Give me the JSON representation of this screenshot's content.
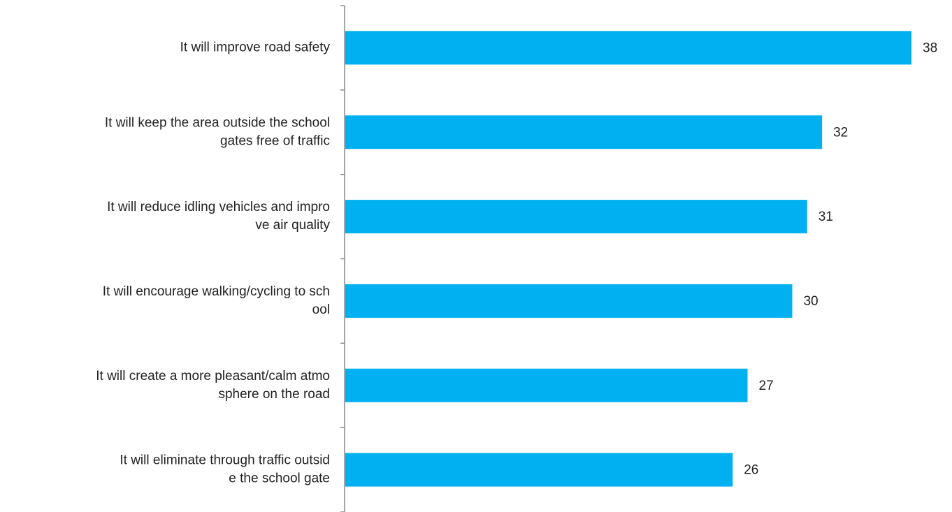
{
  "chart_data": {
    "type": "bar",
    "orientation": "horizontal",
    "categories": [
      [
        "It will improve road safety"
      ],
      [
        "It will keep the area outside the school",
        "gates free of traffic"
      ],
      [
        "It will reduce idling vehicles and impro",
        "ve air quality"
      ],
      [
        "It will encourage walking/cycling to sch",
        "ool"
      ],
      [
        "It will create a more pleasant/calm atmo",
        "sphere on the road"
      ],
      [
        "It will eliminate through traffic outsid",
        "e the school gate"
      ]
    ],
    "values": [
      38,
      32,
      31,
      30,
      27,
      26
    ],
    "color": "#00b0f0"
  }
}
